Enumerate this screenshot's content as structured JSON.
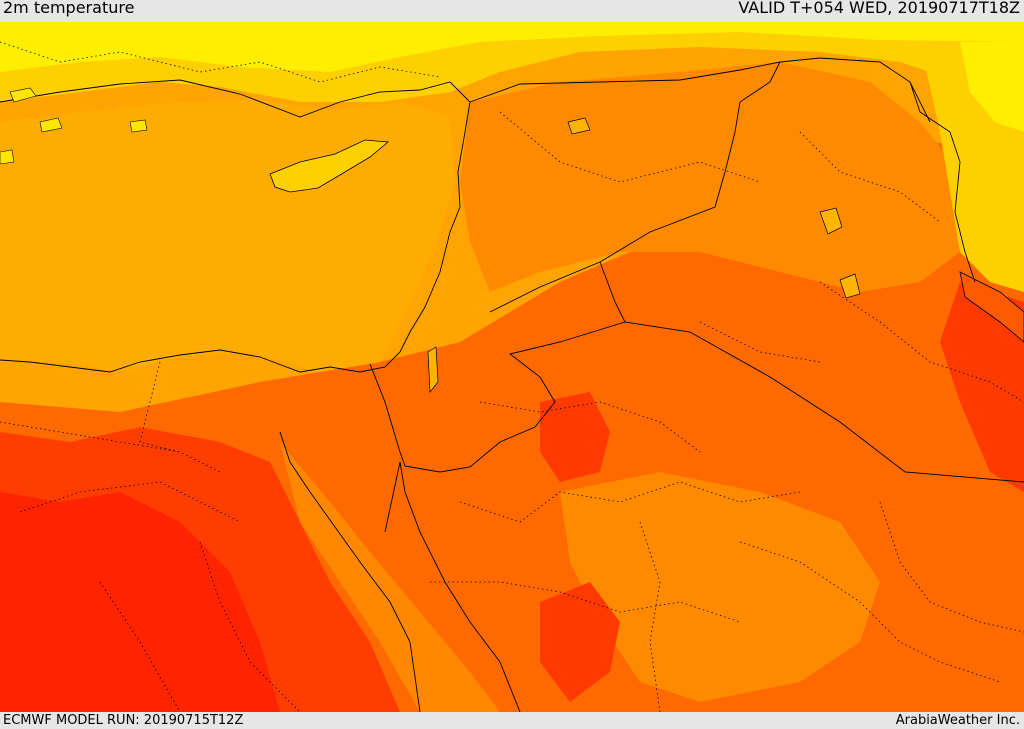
{
  "header": {
    "title": "2m temperature",
    "valid": "VALID T+054 WED, 20190717T18Z"
  },
  "footer": {
    "model_run": "ECMWF MODEL RUN: 20190715T12Z",
    "credit": "ArabiaWeather Inc."
  },
  "palette": {
    "yellow": "#ffff00",
    "light_orange_yellow": "#ffd400",
    "amber": "#ffb400",
    "orange": "#ff8c00",
    "dark_orange": "#ff6a00",
    "red_orange": "#ff4e00",
    "red": "#ff2a00",
    "green_hint": "#a6ff4d"
  }
}
